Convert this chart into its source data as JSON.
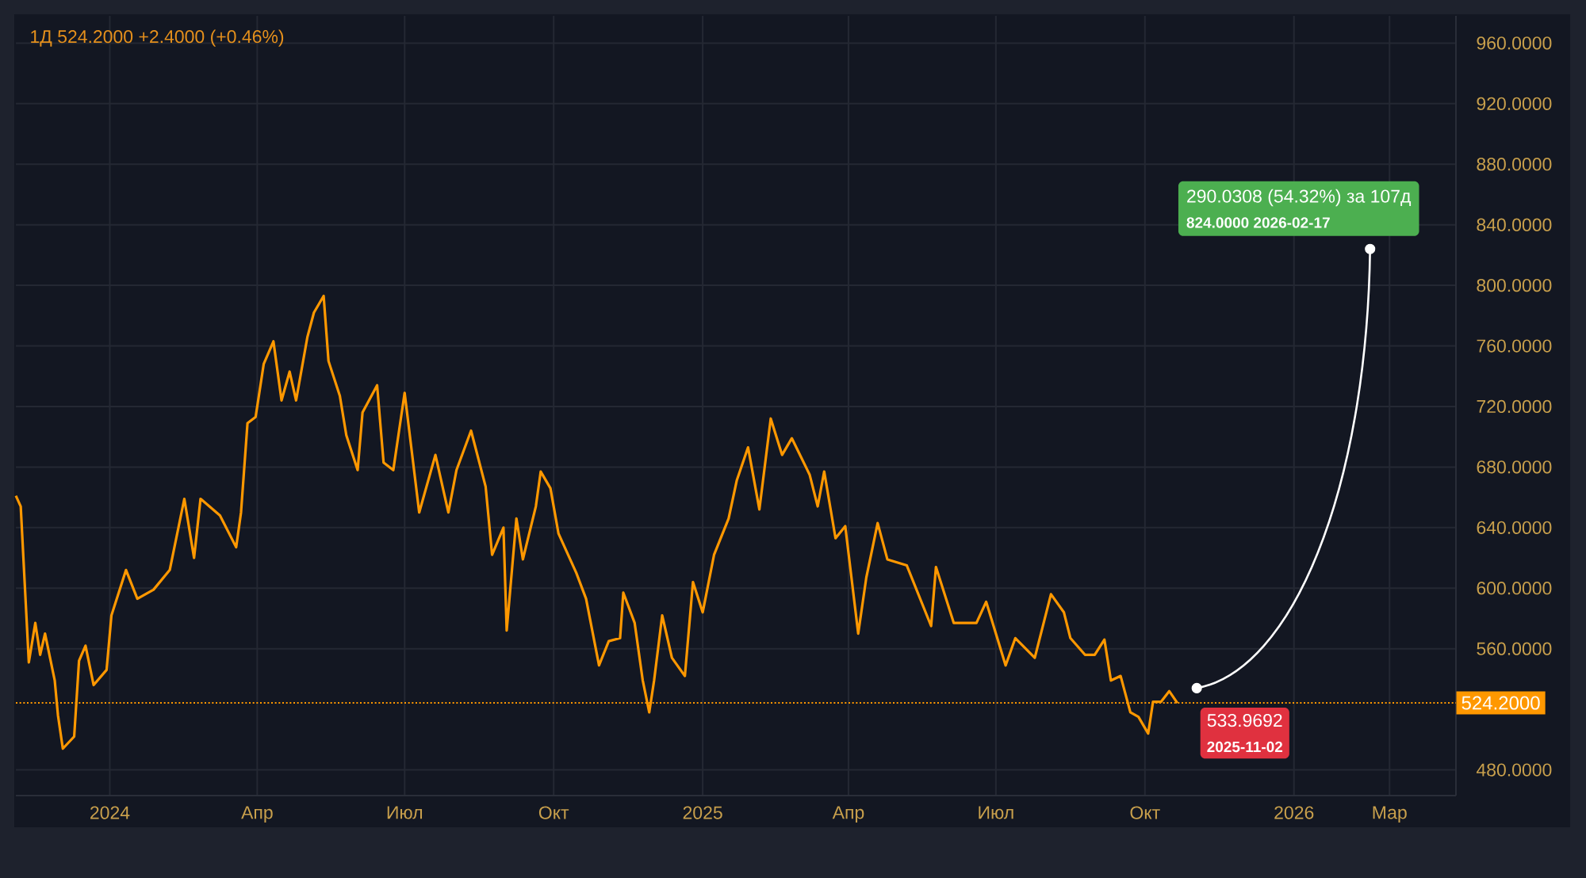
{
  "chart_data": {
    "type": "line",
    "title": "1Д  524.2000  +2.4000 (+0.46%)",
    "x": [
      "2023-11-04",
      "2023-11-07",
      "2023-11-12",
      "2023-11-16",
      "2023-11-19",
      "2023-11-22",
      "2023-11-28",
      "2023-11-30",
      "2023-12-03",
      "2023-12-10",
      "2023-12-13",
      "2023-12-17",
      "2023-12-22",
      "2023-12-30",
      "2024-01-02",
      "2024-01-11",
      "2024-01-18",
      "2024-01-28",
      "2024-02-07",
      "2024-02-16",
      "2024-02-22",
      "2024-02-26",
      "2024-03-09",
      "2024-03-19",
      "2024-03-22",
      "2024-03-26",
      "2024-03-31",
      "2024-04-05",
      "2024-04-11",
      "2024-04-16",
      "2024-04-21",
      "2024-04-25",
      "2024-05-02",
      "2024-05-06",
      "2024-05-12",
      "2024-05-15",
      "2024-05-22",
      "2024-05-26",
      "2024-06-02",
      "2024-06-05",
      "2024-06-14",
      "2024-06-18",
      "2024-06-24",
      "2024-07-01",
      "2024-07-10",
      "2024-07-20",
      "2024-07-28",
      "2024-08-02",
      "2024-08-11",
      "2024-08-20",
      "2024-08-24",
      "2024-08-31",
      "2024-09-02",
      "2024-09-08",
      "2024-09-12",
      "2024-09-20",
      "2024-09-23",
      "2024-09-29",
      "2024-10-04",
      "2024-10-15",
      "2024-10-21",
      "2024-10-29",
      "2024-11-04",
      "2024-11-11",
      "2024-11-13",
      "2024-11-20",
      "2024-11-25",
      "2024-11-29",
      "2024-12-02",
      "2024-12-07",
      "2024-12-13",
      "2024-12-21",
      "2024-12-26",
      "2025-01-01",
      "2025-01-08",
      "2025-01-17",
      "2025-01-22",
      "2025-01-29",
      "2025-02-05",
      "2025-02-12",
      "2025-02-19",
      "2025-02-25",
      "2025-03-08",
      "2025-03-13",
      "2025-03-17",
      "2025-03-24",
      "2025-03-30",
      "2025-04-07",
      "2025-04-12",
      "2025-04-19",
      "2025-04-25",
      "2025-05-07",
      "2025-05-22",
      "2025-05-25",
      "2025-06-05",
      "2025-06-19",
      "2025-06-25",
      "2025-07-07",
      "2025-07-13",
      "2025-07-25",
      "2025-08-04",
      "2025-08-12",
      "2025-08-16",
      "2025-08-25",
      "2025-08-31",
      "2025-09-06",
      "2025-09-10",
      "2025-09-16",
      "2025-09-22",
      "2025-09-27",
      "2025-10-03",
      "2025-10-06",
      "2025-10-11",
      "2025-10-16",
      "2025-10-21"
    ],
    "series": [
      {
        "color": "#ff9800",
        "values": [
          661,
          654,
          551,
          577,
          556,
          570,
          539,
          516,
          494,
          502,
          552,
          562,
          536,
          546,
          582,
          612,
          593,
          599,
          612,
          659,
          620,
          659,
          648,
          627,
          650,
          709,
          713,
          748,
          763,
          724,
          743,
          724,
          766,
          782,
          793,
          750,
          727,
          701,
          678,
          716,
          734,
          683,
          678,
          729,
          650,
          688,
          650,
          678,
          704,
          667,
          622,
          640,
          572,
          646,
          619,
          654,
          677,
          666,
          636,
          610,
          593,
          549,
          565,
          567,
          597,
          577,
          539,
          518,
          539,
          582,
          554,
          542,
          604,
          584,
          622,
          646,
          671,
          693,
          652,
          712,
          688,
          699,
          675,
          654,
          677,
          633,
          641,
          570,
          607,
          643,
          619,
          615,
          575,
          614,
          577,
          577,
          591,
          549,
          567,
          554,
          596,
          584,
          567,
          556,
          556,
          566,
          539,
          542,
          518,
          515,
          504,
          525,
          525,
          532,
          524.2
        ]
      },
      {
        "type": "line",
        "color": "#ffffff",
        "marker": "circle",
        "x": [
          "2025-11-02",
          "2026-02-17"
        ],
        "values": [
          533.9692,
          824.0
        ]
      }
    ],
    "xlim": [
      "2023-11-04",
      "2026-04-11"
    ],
    "ylim": [
      463,
      978
    ],
    "xticks": [
      {
        "value": "2024-01-01",
        "label": "2024"
      },
      {
        "value": "2024-04-01",
        "label": "Апр"
      },
      {
        "value": "2024-07-01",
        "label": "Июл"
      },
      {
        "value": "2024-10-01",
        "label": "Окт"
      },
      {
        "value": "2025-01-01",
        "label": "2025"
      },
      {
        "value": "2025-04-01",
        "label": "Апр"
      },
      {
        "value": "2025-07-01",
        "label": "Июл"
      },
      {
        "value": "2025-10-01",
        "label": "Окт"
      },
      {
        "value": "2026-01-01",
        "label": "2026"
      },
      {
        "value": "2026-03-01",
        "label": "Мар"
      }
    ],
    "yticks": [
      {
        "value": 480,
        "label": "480.0000"
      },
      {
        "value": 560,
        "label": "560.0000"
      },
      {
        "value": 600,
        "label": "600.0000"
      },
      {
        "value": 640,
        "label": "640.0000"
      },
      {
        "value": 680,
        "label": "680.0000"
      },
      {
        "value": 720,
        "label": "720.0000"
      },
      {
        "value": 760,
        "label": "760.0000"
      },
      {
        "value": 800,
        "label": "800.0000"
      },
      {
        "value": 840,
        "label": "840.0000"
      },
      {
        "value": 880,
        "label": "880.0000"
      },
      {
        "value": 920,
        "label": "920.0000"
      },
      {
        "value": 960,
        "label": "960.0000"
      }
    ],
    "grid": true,
    "ref_lines": [
      {
        "axis": "y",
        "value": 524.2,
        "label": "524.2000",
        "color": "#ff9800",
        "line_style": "dotted"
      }
    ],
    "annotations": [
      {
        "text": "290.0308 (54.32%) за 107д",
        "x": "2026-02-17",
        "y": 824.0
      },
      "824.0000  2026-02-17",
      {
        "text": "533.9692",
        "x": "2025-11-02",
        "y": 533.9692
      },
      "2025-11-02"
    ]
  }
}
